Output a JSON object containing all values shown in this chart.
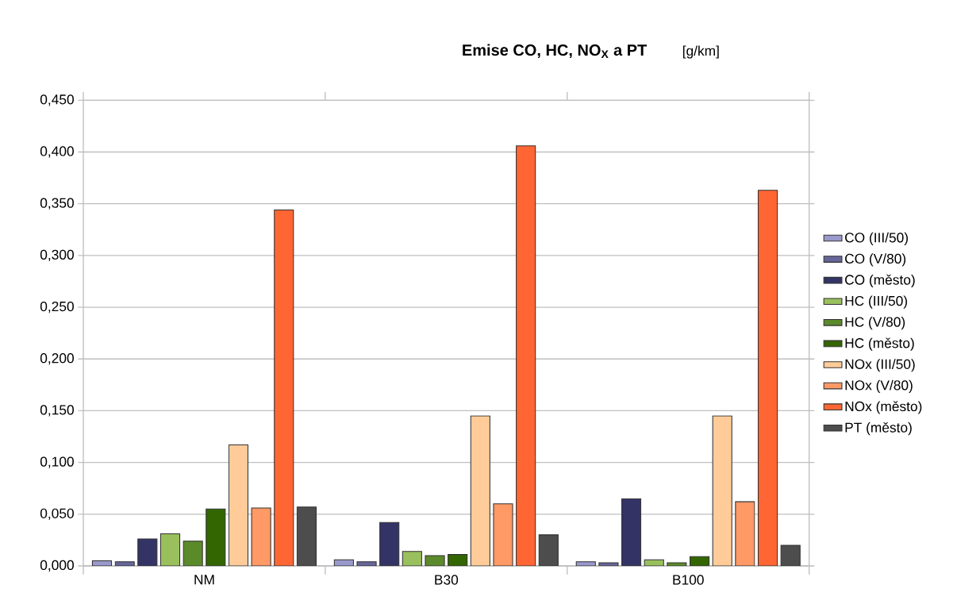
{
  "chart_data": {
    "type": "bar",
    "title": "Emise CO, HC, NO$_{X}$ a PT",
    "ylabel": "[g/km]",
    "categories": [
      "NM",
      "B30",
      "B100"
    ],
    "series": [
      {
        "name": "CO (III/50)",
        "color": "#9999cc",
        "values": [
          0.005,
          0.006,
          0.004
        ]
      },
      {
        "name": "CO (V/80)",
        "color": "#666699",
        "values": [
          0.004,
          0.004,
          0.003
        ]
      },
      {
        "name": "CO (město)",
        "color": "#333366",
        "values": [
          0.026,
          0.042,
          0.065
        ]
      },
      {
        "name": "HC (III/50)",
        "color": "#99c05c",
        "values": [
          0.031,
          0.014,
          0.006
        ]
      },
      {
        "name": "HC (V/80)",
        "color": "#5b8a2b",
        "values": [
          0.024,
          0.01,
          0.003
        ]
      },
      {
        "name": "HC (město)",
        "color": "#336600",
        "values": [
          0.055,
          0.011,
          0.009
        ]
      },
      {
        "name": "NOx (III/50)",
        "color": "#ffcc99",
        "values": [
          0.117,
          0.145,
          0.145
        ]
      },
      {
        "name": "NOx (V/80)",
        "color": "#ff9966",
        "values": [
          0.056,
          0.06,
          0.062
        ]
      },
      {
        "name": "NOx (město)",
        "color": "#ff6633",
        "values": [
          0.344,
          0.406,
          0.363
        ]
      },
      {
        "name": "PT (město)",
        "color": "#4d4d4d",
        "values": [
          0.057,
          0.03,
          0.02
        ]
      }
    ],
    "ylim": [
      0,
      0.45
    ],
    "yticks": [
      {
        "value": 0,
        "label": "0,000"
      },
      {
        "value": 0.05,
        "label": "0,050"
      },
      {
        "value": 0.1,
        "label": "0,100"
      },
      {
        "value": 0.15,
        "label": "0,150"
      },
      {
        "value": 0.2,
        "label": "0,200"
      },
      {
        "value": 0.25,
        "label": "0,250"
      },
      {
        "value": 0.3,
        "label": "0,300"
      },
      {
        "value": 0.35,
        "label": "0,350"
      },
      {
        "value": 0.4,
        "label": "0,400"
      },
      {
        "value": 0.45,
        "label": "0,450"
      }
    ],
    "grid": "y",
    "legend": "right"
  }
}
